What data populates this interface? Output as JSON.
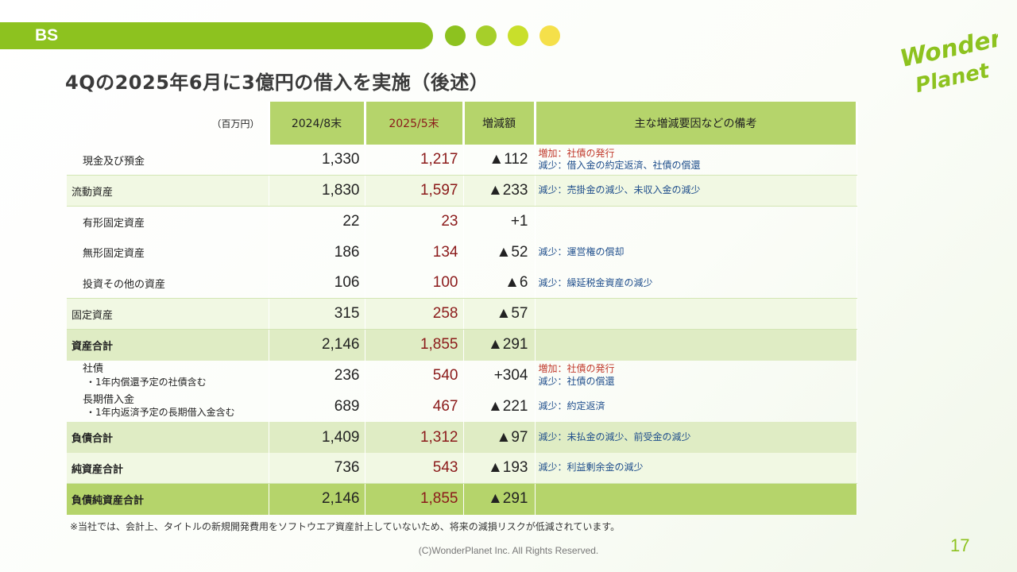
{
  "header": {
    "label": "BS",
    "dot_colors": [
      "#8dc21f",
      "#a6cf2a",
      "#c9df2b",
      "#f5e04a"
    ],
    "brand_color": "#8dc21f"
  },
  "logo": {
    "line1": "Wonder",
    "line2": "Planet"
  },
  "title": "4Qの2025年6月に3億円の借入を実施（後述）",
  "table": {
    "unit_label": "（百万円）",
    "columns": [
      "2024/8末",
      "2025/5末",
      "増減額",
      "主な増減要因などの備考"
    ],
    "rows": [
      {
        "label": "現金及び預金",
        "prev": "1,330",
        "curr": "1,217",
        "diff": "▲112",
        "note_inc": "増加：社債の発行",
        "note_dec": "減少：借入金の約定返済、社債の償還"
      },
      {
        "label": "流動資産",
        "prev": "1,830",
        "curr": "1,597",
        "diff": "▲233",
        "note_dec": "減少：売掛金の減少、未収入金の減少"
      },
      {
        "label": "有形固定資産",
        "prev": "22",
        "curr": "23",
        "diff": "+1"
      },
      {
        "label": "無形固定資産",
        "prev": "186",
        "curr": "134",
        "diff": "▲52",
        "note_dec": "減少：運営権の償却"
      },
      {
        "label": "投資その他の資産",
        "prev": "106",
        "curr": "100",
        "diff": "▲6",
        "note_dec": "減少：繰延税金資産の減少"
      },
      {
        "label": "固定資産",
        "prev": "315",
        "curr": "258",
        "diff": "▲57"
      },
      {
        "label": "資産合計",
        "prev": "2,146",
        "curr": "1,855",
        "diff": "▲291"
      },
      {
        "label": "社債",
        "label_sub": "・1年内償還予定の社債含む",
        "prev": "236",
        "curr": "540",
        "diff": "+304",
        "note_inc": "増加：社債の発行",
        "note_dec": "減少：社債の償還"
      },
      {
        "label": "長期借入金",
        "label_sub": "・1年内返済予定の長期借入金含む",
        "prev": "689",
        "curr": "467",
        "diff": "▲221",
        "note_dec": "減少：約定返済"
      },
      {
        "label": "負債合計",
        "prev": "1,409",
        "curr": "1,312",
        "diff": "▲97",
        "note_dec": "減少：未払金の減少、前受金の減少"
      },
      {
        "label": "純資産合計",
        "prev": "736",
        "curr": "543",
        "diff": "▲193",
        "note_dec": "減少：利益剰余金の減少"
      },
      {
        "label": "負債純資産合計",
        "prev": "2,146",
        "curr": "1,855",
        "diff": "▲291"
      }
    ]
  },
  "footnote": "※当社では、会計上、タイトルの新規開発費用をソフトウエア資産計上していないため、将来の減損リスクが低減されています。",
  "copyright": "(C)WonderPlanet Inc.  All Rights Reserved.",
  "page_number": "17"
}
